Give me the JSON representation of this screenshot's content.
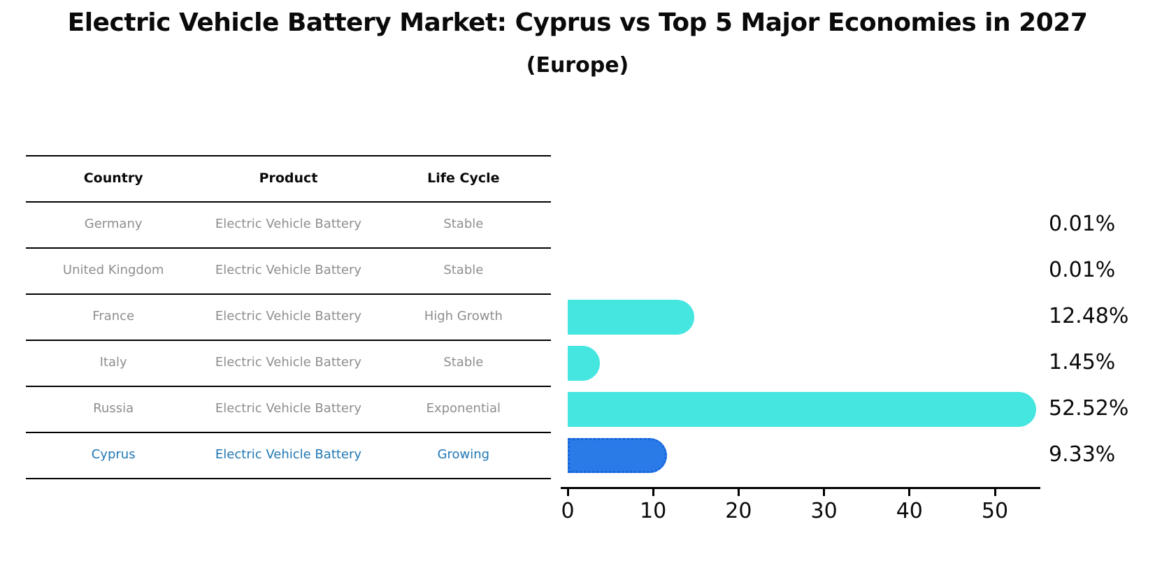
{
  "page": {
    "background": "#ffffff"
  },
  "chart_data": {
    "type": "bar",
    "orientation": "horizontal",
    "title": "Electric Vehicle Battery Market: Cyprus vs Top 5 Major Economies in 2027",
    "subtitle": "(Europe)",
    "categories": [
      "Germany",
      "United Kingdom",
      "France",
      "Italy",
      "Russia",
      "Cyprus"
    ],
    "values": [
      0.01,
      0.01,
      12.48,
      1.45,
      52.52,
      9.33
    ],
    "value_labels": [
      "0.01%",
      "0.01%",
      "12.48%",
      "1.45%",
      "52.52%",
      "9.33%"
    ],
    "x_ticks": [
      "0",
      "10",
      "20",
      "30",
      "40",
      "50"
    ],
    "x_tick_values": [
      0,
      10,
      20,
      30,
      40,
      50
    ],
    "xlim": [
      0,
      55
    ],
    "grid": false,
    "legend": false,
    "bar_color": "#45e5e0",
    "highlight_index": 5,
    "highlight_country": "Cyprus",
    "highlight_bar_color": "#2a7be8",
    "highlight_bar_border_color": "#1563db",
    "highlight_text_color": "#1f77b4",
    "row_text_color": "#8e8e8e",
    "table": {
      "headers": [
        "Country",
        "Product",
        "Life Cycle"
      ],
      "rows": [
        [
          "Germany",
          "Electric Vehicle Battery",
          "Stable"
        ],
        [
          "United Kingdom",
          "Electric Vehicle Battery",
          "Stable"
        ],
        [
          "France",
          "Electric Vehicle Battery",
          "High Growth"
        ],
        [
          "Italy",
          "Electric Vehicle Battery",
          "Stable"
        ],
        [
          "Russia",
          "Electric Vehicle Battery",
          "Exponential"
        ],
        [
          "Cyprus",
          "Electric Vehicle Battery",
          "Growing"
        ]
      ]
    }
  }
}
